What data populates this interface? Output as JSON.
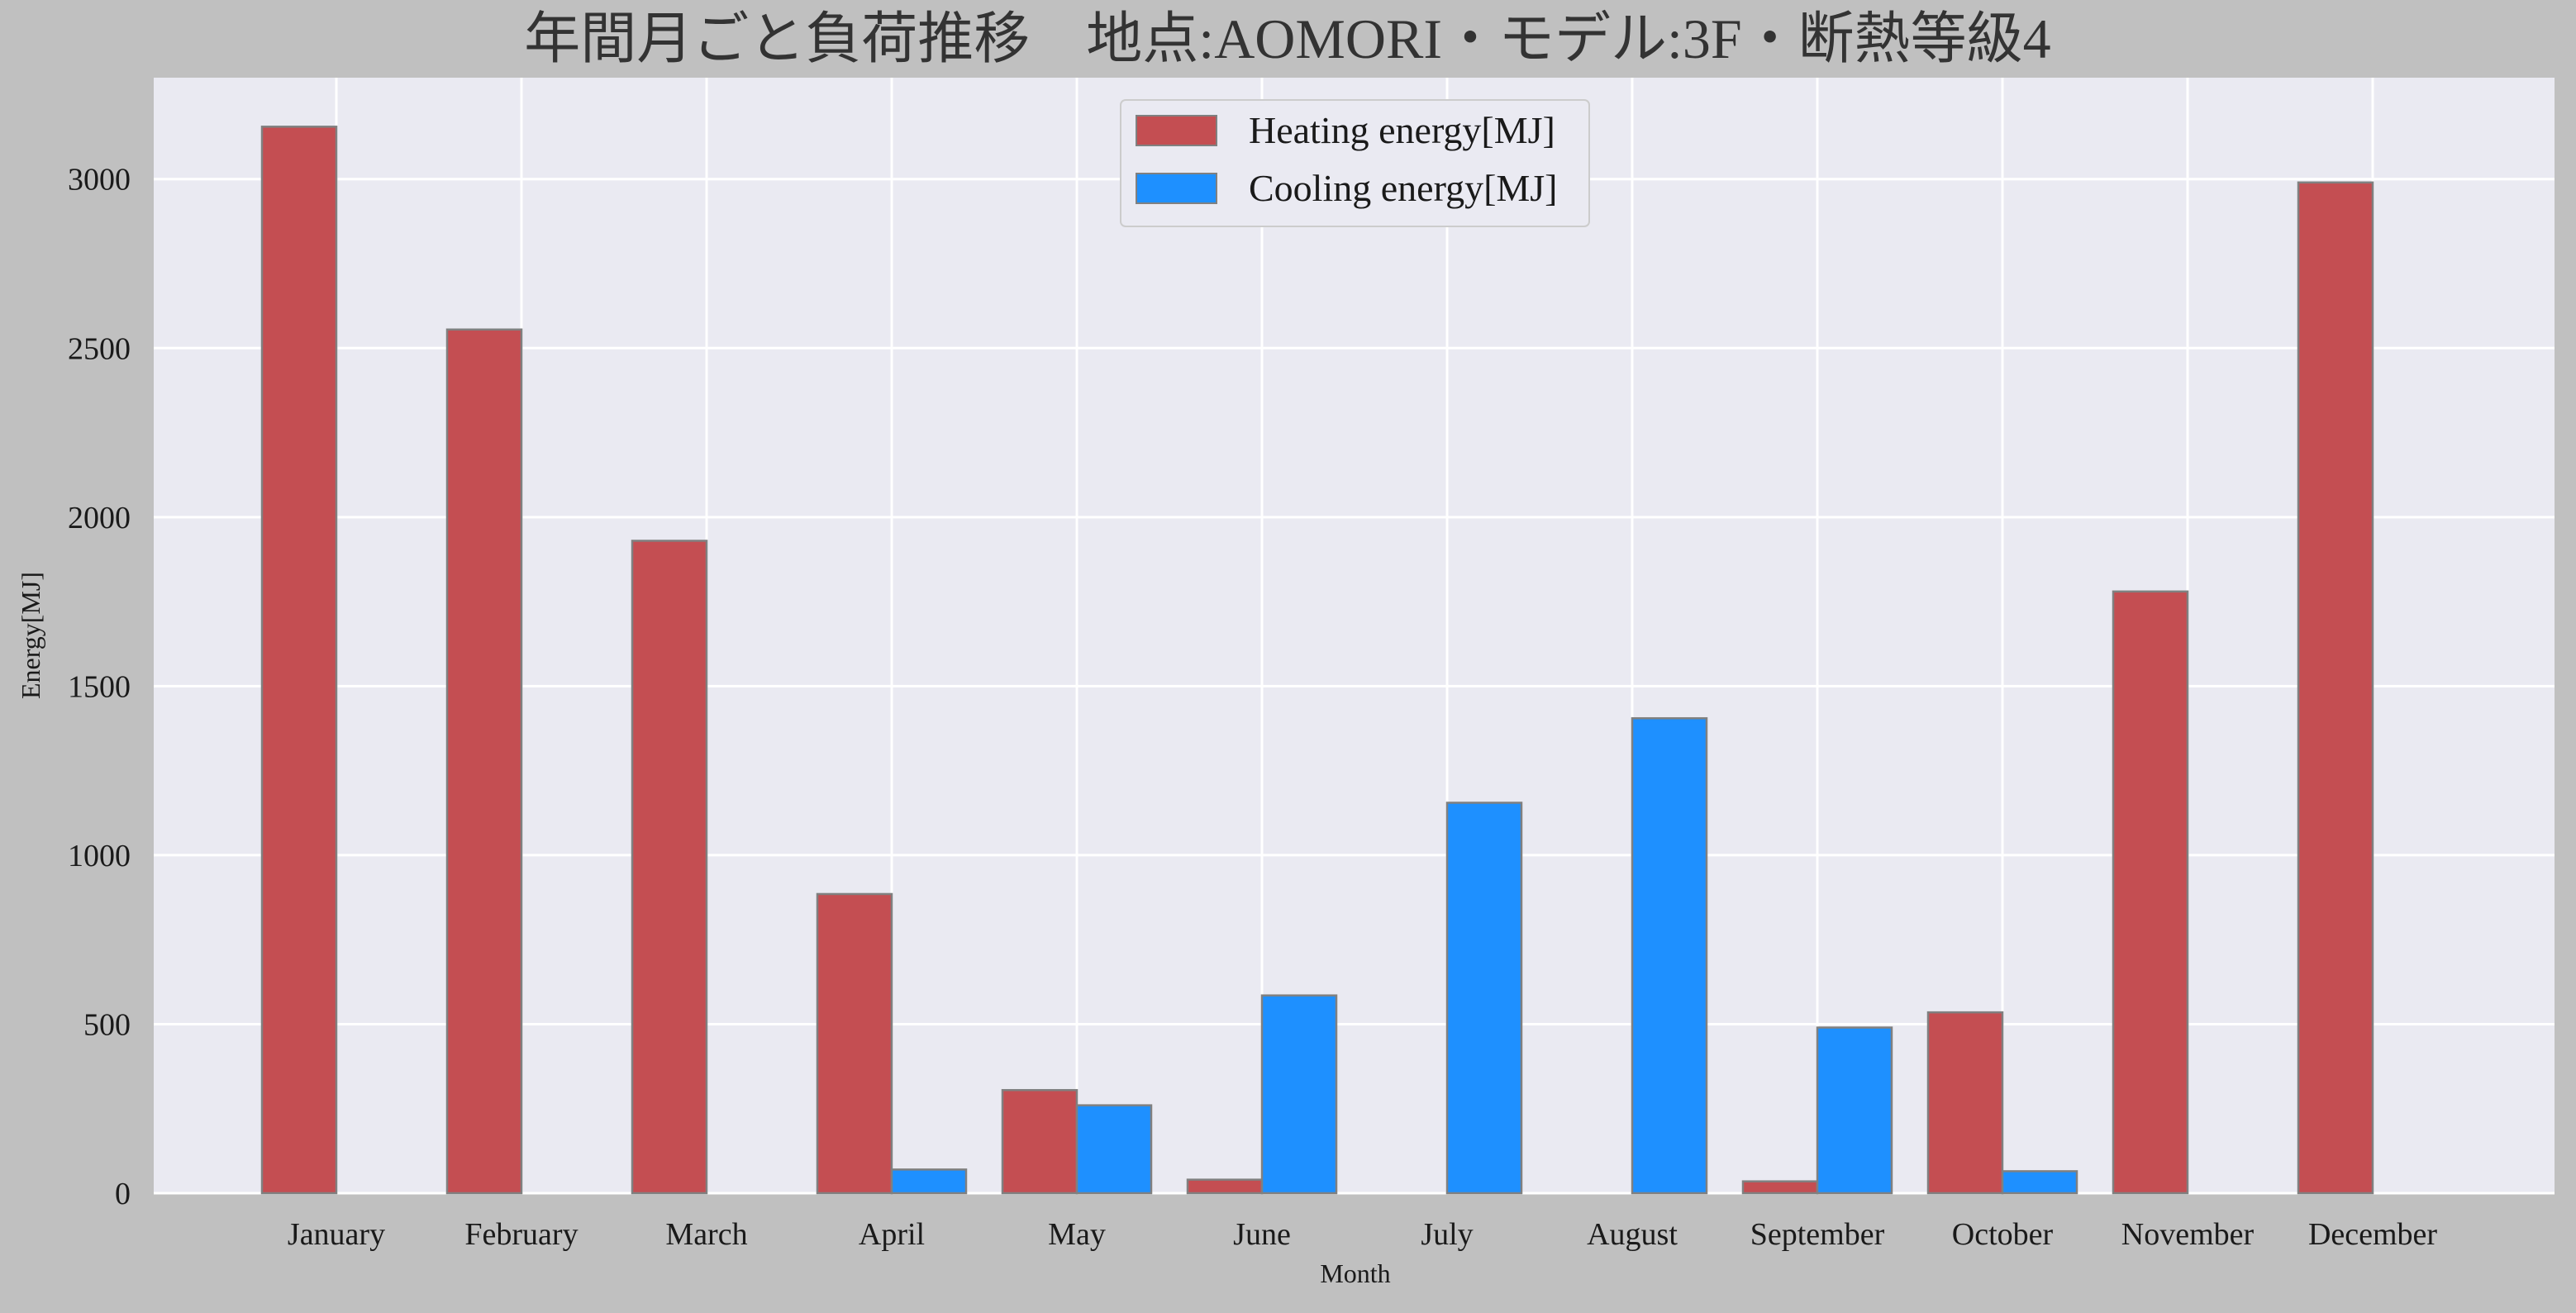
{
  "chart_data": {
    "type": "bar",
    "title": "年間月ごと負荷推移　地点:AOMORI・モデル:3F・断熱等級4",
    "xlabel": "Month",
    "ylabel": "Energy[MJ]",
    "ylim": [
      0,
      3300
    ],
    "yticks": [
      0,
      500,
      1000,
      1500,
      2000,
      2500,
      3000
    ],
    "grid": true,
    "legend_position": "top-center",
    "categories": [
      "January",
      "February",
      "March",
      "April",
      "May",
      "June",
      "July",
      "August",
      "September",
      "October",
      "November",
      "December"
    ],
    "series": [
      {
        "name": "Heating energy[MJ]",
        "color": "#c44e52",
        "values": [
          3155,
          2555,
          1930,
          885,
          305,
          40,
          0,
          0,
          35,
          535,
          1780,
          2990
        ]
      },
      {
        "name": "Cooling energy[MJ]",
        "color": "#1e90ff",
        "values": [
          0,
          0,
          0,
          70,
          260,
          585,
          1155,
          1405,
          490,
          65,
          0,
          0
        ]
      }
    ]
  }
}
